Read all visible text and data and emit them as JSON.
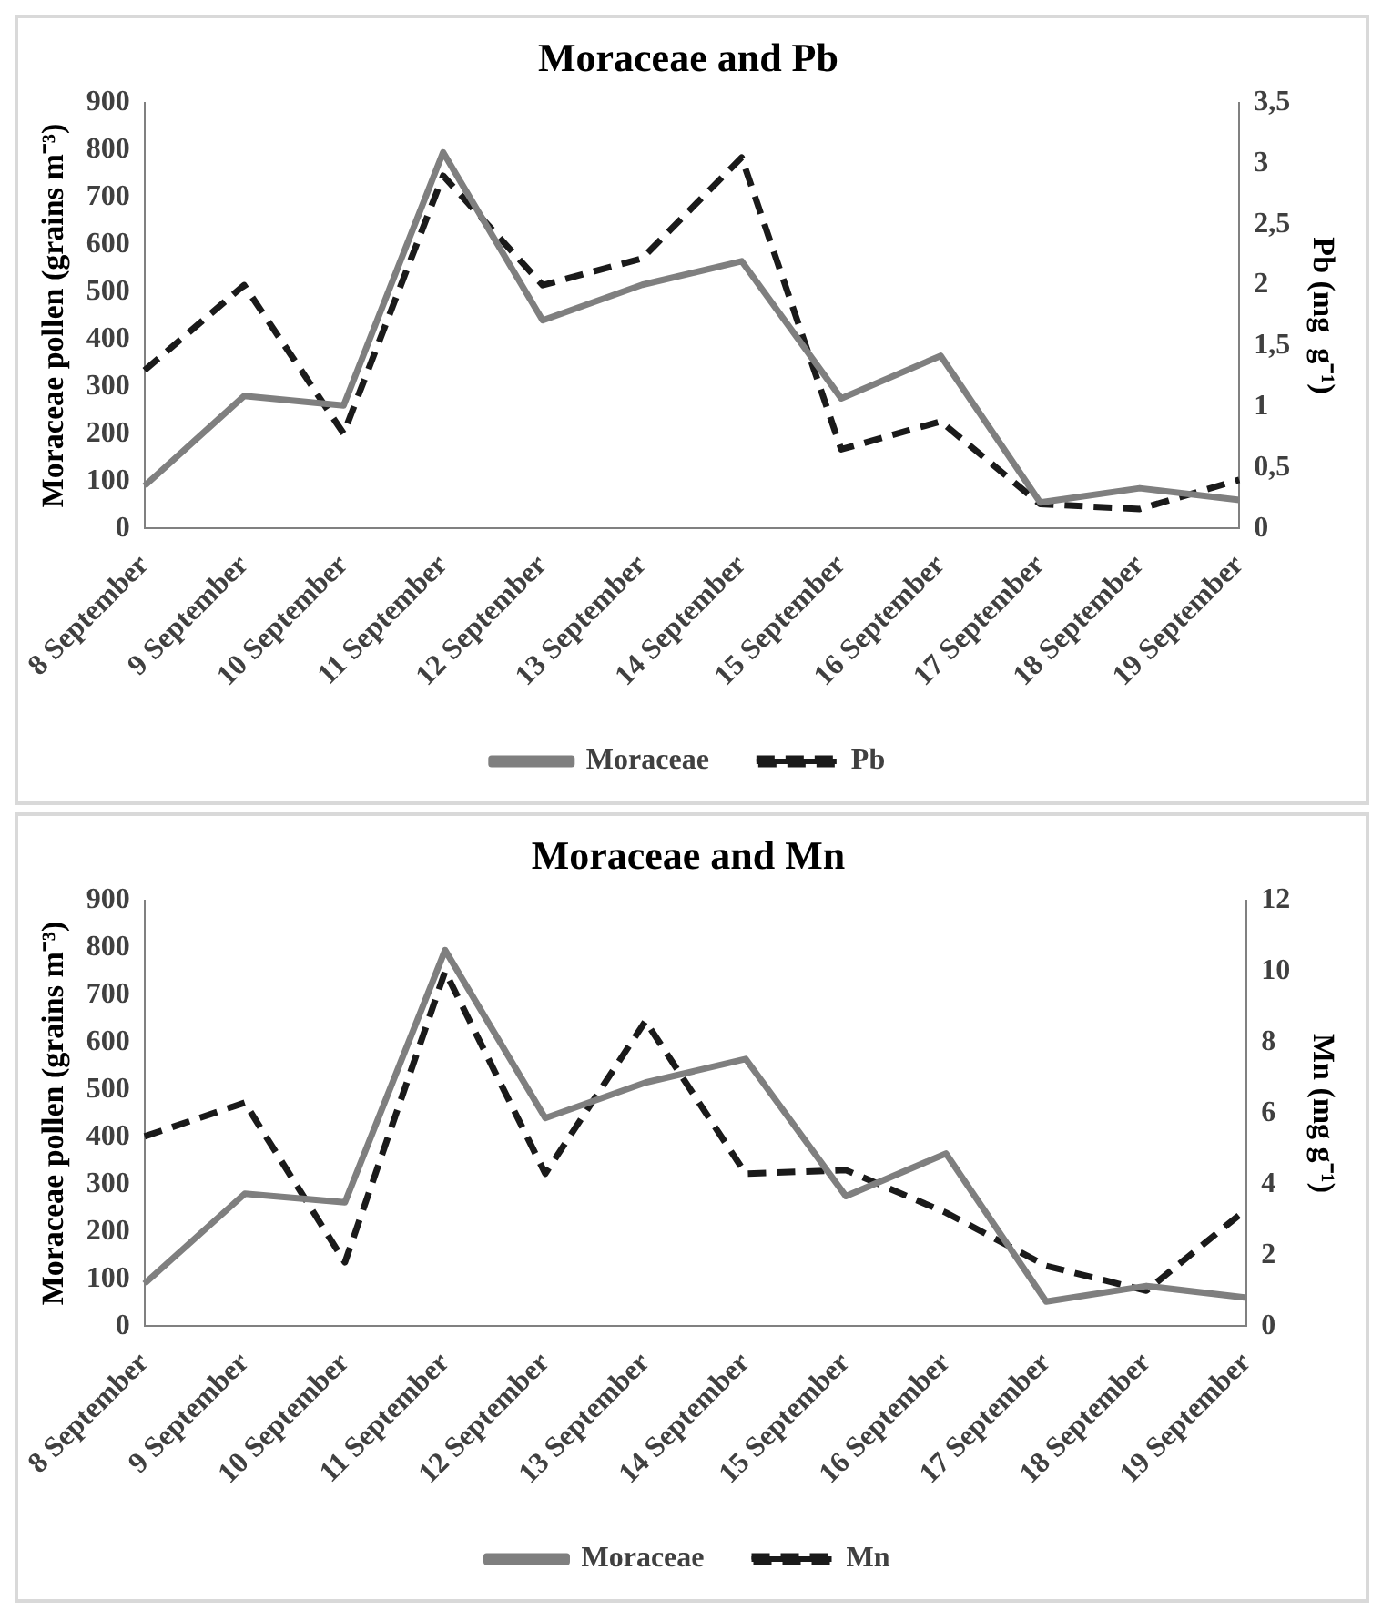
{
  "chart_data": [
    {
      "type": "line",
      "title": "Moraceae and Pb",
      "categories": [
        "8 September",
        "9 September",
        "10 September",
        "11 September",
        "12 September",
        "13 September",
        "14 September",
        "15 September",
        "16 September",
        "17 September",
        "18 September",
        "19 September"
      ],
      "ylabel": "Moraceae pollen (grains m⁻³)",
      "y2label": "Pb (mg  g⁻¹)",
      "ylim": [
        0,
        900
      ],
      "yticks": [
        0,
        100,
        200,
        300,
        400,
        500,
        600,
        700,
        800,
        900
      ],
      "y2lim": [
        0,
        3.5
      ],
      "y2ticks": [
        0,
        {
          "value": 0.5,
          "label": "0,5"
        },
        1,
        {
          "value": 1.5,
          "label": "1,5"
        },
        2,
        {
          "value": 2.5,
          "label": "2,5"
        },
        3,
        {
          "value": 3.5,
          "label": "3,5"
        }
      ],
      "legend": "bottom",
      "marker": "none",
      "series": [
        {
          "name": "Moraceae",
          "color": "#7f7f7f",
          "line_style": "solid",
          "values": [
            90,
            280,
            260,
            795,
            440,
            515,
            565,
            275,
            365,
            55,
            85,
            60
          ]
        },
        {
          "name": "Pb",
          "color": "#1a1a1a",
          "line_style": "dashed",
          "axis": "y2",
          "values": [
            1.3,
            2.0,
            0.78,
            2.9,
            2.0,
            2.22,
            3.05,
            0.65,
            0.88,
            0.2,
            0.16,
            0.4
          ]
        }
      ]
    },
    {
      "type": "line",
      "title": "Moraceae and Mn",
      "categories": [
        "8 September",
        "9 September",
        "10 September",
        "11 September",
        "12 September",
        "13 September",
        "14 September",
        "15 September",
        "16 September",
        "17 September",
        "18 September",
        "19 September"
      ],
      "ylabel": "Moraceae pollen (grains m⁻³)",
      "y2label": "Mn (mg g⁻¹)",
      "ylim": [
        0,
        900
      ],
      "yticks": [
        0,
        100,
        200,
        300,
        400,
        500,
        600,
        700,
        800,
        900
      ],
      "y2lim": [
        0,
        12
      ],
      "y2ticks": [
        0,
        2,
        4,
        6,
        8,
        10,
        12
      ],
      "legend": "bottom",
      "marker": "none",
      "series": [
        {
          "name": "Moraceae",
          "color": "#7f7f7f",
          "line_style": "solid",
          "values": [
            90,
            280,
            262,
            795,
            440,
            515,
            565,
            275,
            365,
            52,
            85,
            60
          ]
        },
        {
          "name": "Mn",
          "color": "#1a1a1a",
          "line_style": "dashed",
          "axis": "y2",
          "values": [
            5.35,
            6.3,
            1.8,
            10.0,
            4.3,
            8.6,
            4.3,
            4.4,
            3.2,
            1.7,
            1.0,
            3.3
          ]
        }
      ]
    }
  ]
}
